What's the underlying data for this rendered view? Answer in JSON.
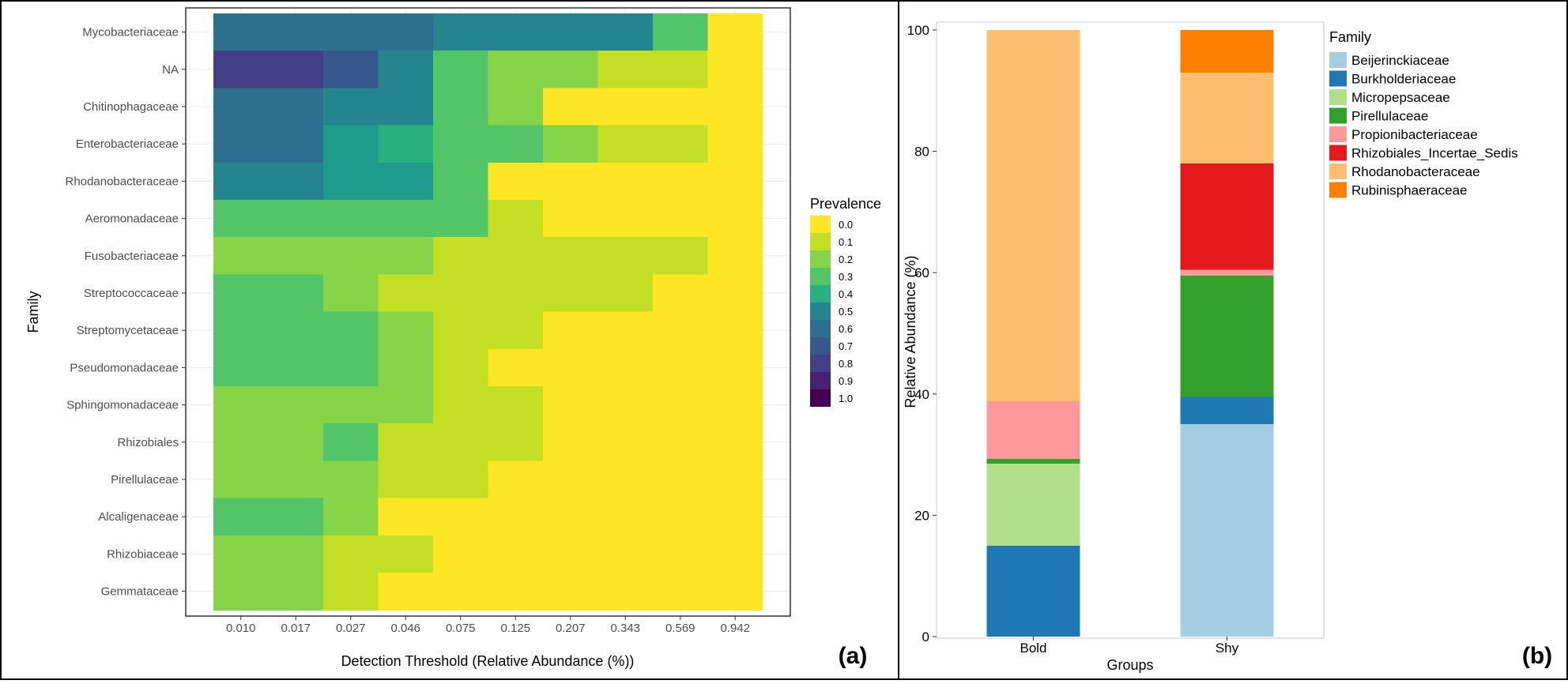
{
  "figure": {
    "panel_a_label": "(a)",
    "panel_b_label": "(b)"
  },
  "chart_data": [
    {
      "type": "heatmap",
      "panel": "(a)",
      "title": "",
      "xlabel": "Detection Threshold (Relative Abundance (%))",
      "ylabel": "Family",
      "x": [
        "0.010",
        "0.017",
        "0.027",
        "0.046",
        "0.075",
        "0.125",
        "0.207",
        "0.343",
        "0.569",
        "0.942"
      ],
      "y": [
        "Mycobacteriaceae",
        "NA",
        "Chitinophagaceae",
        "Enterobacteriaceae",
        "Rhodanobacteraceae",
        "Aeromonadaceae",
        "Fusobacteriaceae",
        "Streptococcaceae",
        "Streptomycetaceae",
        "Pseudomonadaceae",
        "Sphingomonadaceae",
        "Rhizobiales",
        "Pirellulaceae",
        "Alcaligenaceae",
        "Rhizobiaceae",
        "Gemmataceae"
      ],
      "values": [
        [
          0.6,
          0.6,
          0.6,
          0.6,
          0.5,
          0.5,
          0.5,
          0.5,
          0.3,
          0.0
        ],
        [
          0.8,
          0.8,
          0.7,
          0.5,
          0.3,
          0.2,
          0.15,
          0.1,
          0.1,
          0.0
        ],
        [
          0.6,
          0.6,
          0.5,
          0.5,
          0.3,
          0.15,
          0.0,
          0.0,
          0.0,
          0.0
        ],
        [
          0.6,
          0.6,
          0.45,
          0.4,
          0.25,
          0.25,
          0.2,
          0.1,
          0.1,
          0.0
        ],
        [
          0.5,
          0.5,
          0.45,
          0.45,
          0.3,
          0.0,
          0.0,
          0.0,
          0.0,
          0.0
        ],
        [
          0.3,
          0.3,
          0.3,
          0.25,
          0.25,
          0.1,
          0.0,
          0.0,
          0.0,
          0.0
        ],
        [
          0.2,
          0.2,
          0.2,
          0.15,
          0.1,
          0.1,
          0.1,
          0.1,
          0.1,
          0.0
        ],
        [
          0.3,
          0.3,
          0.2,
          0.1,
          0.1,
          0.1,
          0.1,
          0.1,
          0.0,
          0.0
        ],
        [
          0.3,
          0.3,
          0.25,
          0.15,
          0.1,
          0.05,
          0.0,
          0.0,
          0.0,
          0.0
        ],
        [
          0.3,
          0.3,
          0.25,
          0.15,
          0.1,
          0.0,
          0.0,
          0.0,
          0.0,
          0.0
        ],
        [
          0.2,
          0.2,
          0.15,
          0.15,
          0.1,
          0.1,
          0.0,
          0.0,
          0.0,
          0.0
        ],
        [
          0.2,
          0.2,
          0.25,
          0.1,
          0.1,
          0.1,
          0.0,
          0.0,
          0.0,
          0.0
        ],
        [
          0.2,
          0.2,
          0.2,
          0.1,
          0.1,
          0.0,
          0.0,
          0.0,
          0.0,
          0.0
        ],
        [
          0.3,
          0.3,
          0.2,
          0.0,
          0.0,
          0.0,
          0.0,
          0.0,
          0.0,
          0.0
        ],
        [
          0.2,
          0.2,
          0.1,
          0.05,
          0.0,
          0.0,
          0.0,
          0.0,
          0.0,
          0.0
        ],
        [
          0.2,
          0.2,
          0.1,
          0.0,
          0.0,
          0.0,
          0.0,
          0.0,
          0.0,
          0.0
        ]
      ],
      "legend": {
        "title": "Prevalence",
        "ticks": [
          "0.0",
          "0.1",
          "0.2",
          "0.3",
          "0.4",
          "0.5",
          "0.6",
          "0.7",
          "0.8",
          "0.9",
          "1.0"
        ],
        "colors": [
          "#fde725",
          "#c2df23",
          "#86d549",
          "#52c569",
          "#2ab07f",
          "#1e9b8a",
          "#25858e",
          "#2d708e",
          "#38588c",
          "#433e85",
          "#482173",
          "#440154"
        ]
      },
      "grid": true
    },
    {
      "type": "bar",
      "stacked": true,
      "panel": "(b)",
      "title": "",
      "xlabel": "Groups",
      "ylabel": "Relative Abundance (%)",
      "categories": [
        "Bold",
        "Shy"
      ],
      "ylim": [
        0,
        100
      ],
      "yticks": [
        "0",
        "20",
        "40",
        "60",
        "80",
        "100"
      ],
      "legend_title": "Family",
      "legend_position": "right",
      "series": [
        {
          "name": "Beijerinckiaceae",
          "color": "#a6cee3",
          "values": [
            0,
            35
          ]
        },
        {
          "name": "Burkholderiaceae",
          "color": "#1f78b4",
          "values": [
            15,
            4.5
          ]
        },
        {
          "name": "Micropepsaceae",
          "color": "#b2df8a",
          "values": [
            13.5,
            0
          ]
        },
        {
          "name": "Pirellulaceae",
          "color": "#33a02c",
          "values": [
            0.8,
            20
          ]
        },
        {
          "name": "Propionibacteriaceae",
          "color": "#fb9a99",
          "values": [
            9.5,
            1
          ]
        },
        {
          "name": "Rhizobiales_Incertae_Sedis",
          "color": "#e31a1c",
          "values": [
            0,
            17.5
          ]
        },
        {
          "name": "Rhodanobacteraceae",
          "color": "#fdbf6f",
          "values": [
            61.2,
            15
          ]
        },
        {
          "name": "Rubinisphaeraceae",
          "color": "#ff7f00",
          "values": [
            0,
            7
          ]
        }
      ],
      "grid": false
    }
  ]
}
